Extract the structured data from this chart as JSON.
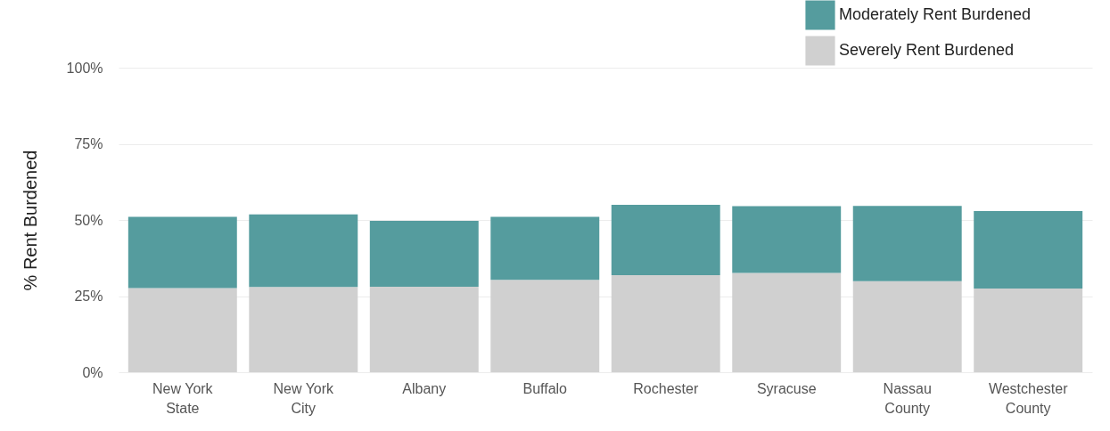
{
  "chart_data": {
    "type": "bar",
    "ylabel": "% Rent Burdened",
    "categories": [
      "New York State",
      "New York City",
      "Albany",
      "Buffalo",
      "Rochester",
      "Syracuse",
      "Nassau County",
      "Westchester County"
    ],
    "stacked": true,
    "series": [
      {
        "name": "Severely Rent Burdened",
        "color": "#d0d0d0",
        "values": [
          27.6,
          28.0,
          28.1,
          30.3,
          31.9,
          32.6,
          29.9,
          27.5
        ]
      },
      {
        "name": "Moderately Rent Burdened",
        "color": "#559c9e",
        "values": [
          23.4,
          23.8,
          21.6,
          20.7,
          23.1,
          21.9,
          24.7,
          25.4
        ]
      }
    ],
    "ylim": [
      0,
      100
    ],
    "yticks": [
      {
        "value": 0,
        "label": "0%"
      },
      {
        "value": 25,
        "label": "25%"
      },
      {
        "value": 50,
        "label": "50%"
      },
      {
        "value": 75,
        "label": "75%"
      },
      {
        "value": 100,
        "label": "100%"
      }
    ],
    "grid": "y",
    "legend": "top right"
  }
}
